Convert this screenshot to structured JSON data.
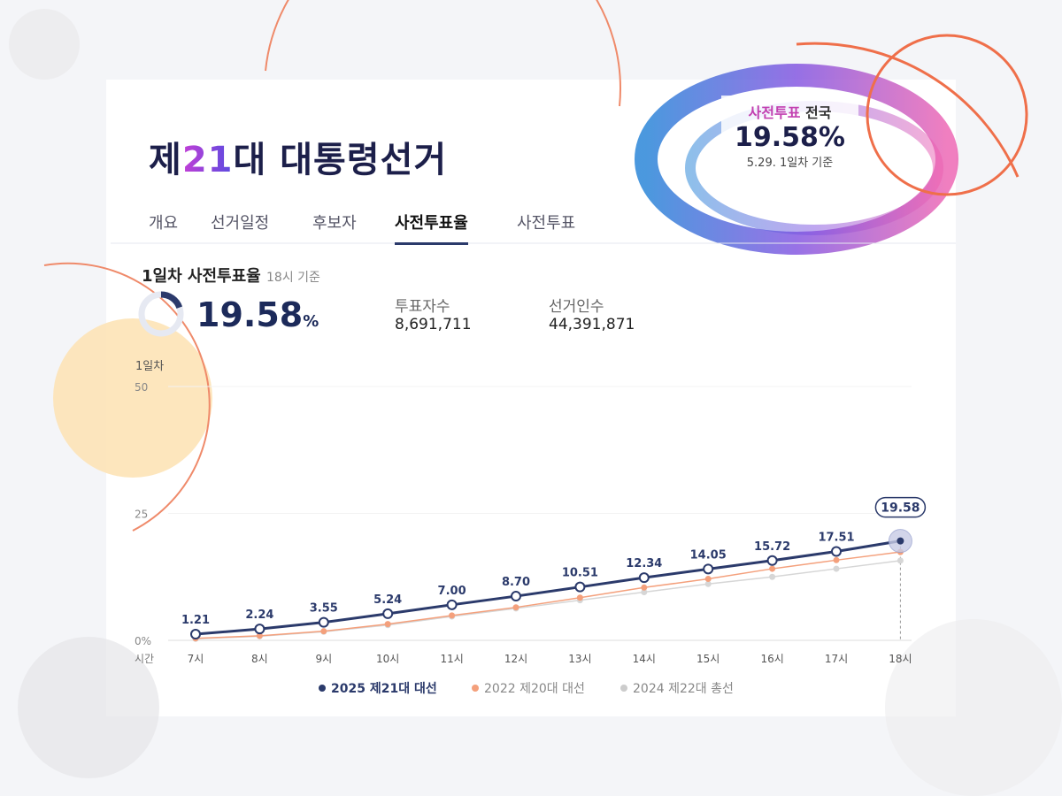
{
  "header": {
    "title_parts": [
      "제",
      "21",
      "대 대통령선거"
    ],
    "tabs": [
      "개요",
      "선거일정",
      "후보자",
      "사전투표율",
      "사전투표"
    ],
    "active_tab": 3
  },
  "banner": {
    "label": "사전투표",
    "region": "전국",
    "rate": "19.58%",
    "note": "5.29. 1일차 기준"
  },
  "summary": {
    "title": "1일차 사전투표율",
    "basis": "18시 기준",
    "rate": 19.58,
    "unit": "%",
    "voters_label": "투표자수",
    "voters": "8,691,711",
    "electorate_label": "선거인수",
    "electorate": "44,391,871"
  },
  "chart_data": {
    "type": "line",
    "y_label": "1일차",
    "x_label": "시간",
    "categories": [
      "7시",
      "8시",
      "9시",
      "10시",
      "11시",
      "12시",
      "13시",
      "14시",
      "15시",
      "16시",
      "17시",
      "18시"
    ],
    "ylim": [
      0,
      50
    ],
    "yticks": [
      {
        "value": 0,
        "label": "0%"
      },
      25,
      50
    ],
    "series": [
      {
        "name": "2025 제21대 대선",
        "color": "#2b3a6b",
        "values": [
          1.21,
          2.24,
          3.55,
          5.24,
          7.0,
          8.7,
          10.51,
          12.34,
          14.05,
          15.72,
          17.51,
          19.58
        ],
        "value_labels": [
          "1.21",
          "2.24",
          "3.55",
          "5.24",
          "7.00",
          "8.70",
          "10.51",
          "12.34",
          "14.05",
          "15.72",
          "17.51",
          "19.58"
        ]
      },
      {
        "name": "2022 제20대 대선",
        "color": "#f4a07c",
        "values": [
          0.4,
          0.9,
          1.8,
          3.2,
          4.9,
          6.5,
          8.4,
          10.4,
          12.1,
          14.1,
          15.8,
          17.4
        ]
      },
      {
        "name": "2024 제22대 총선",
        "color": "#d6d6d6",
        "values": [
          0.3,
          0.8,
          1.7,
          3.0,
          4.7,
          6.3,
          7.9,
          9.5,
          11.1,
          12.5,
          14.1,
          15.7
        ]
      }
    ]
  }
}
